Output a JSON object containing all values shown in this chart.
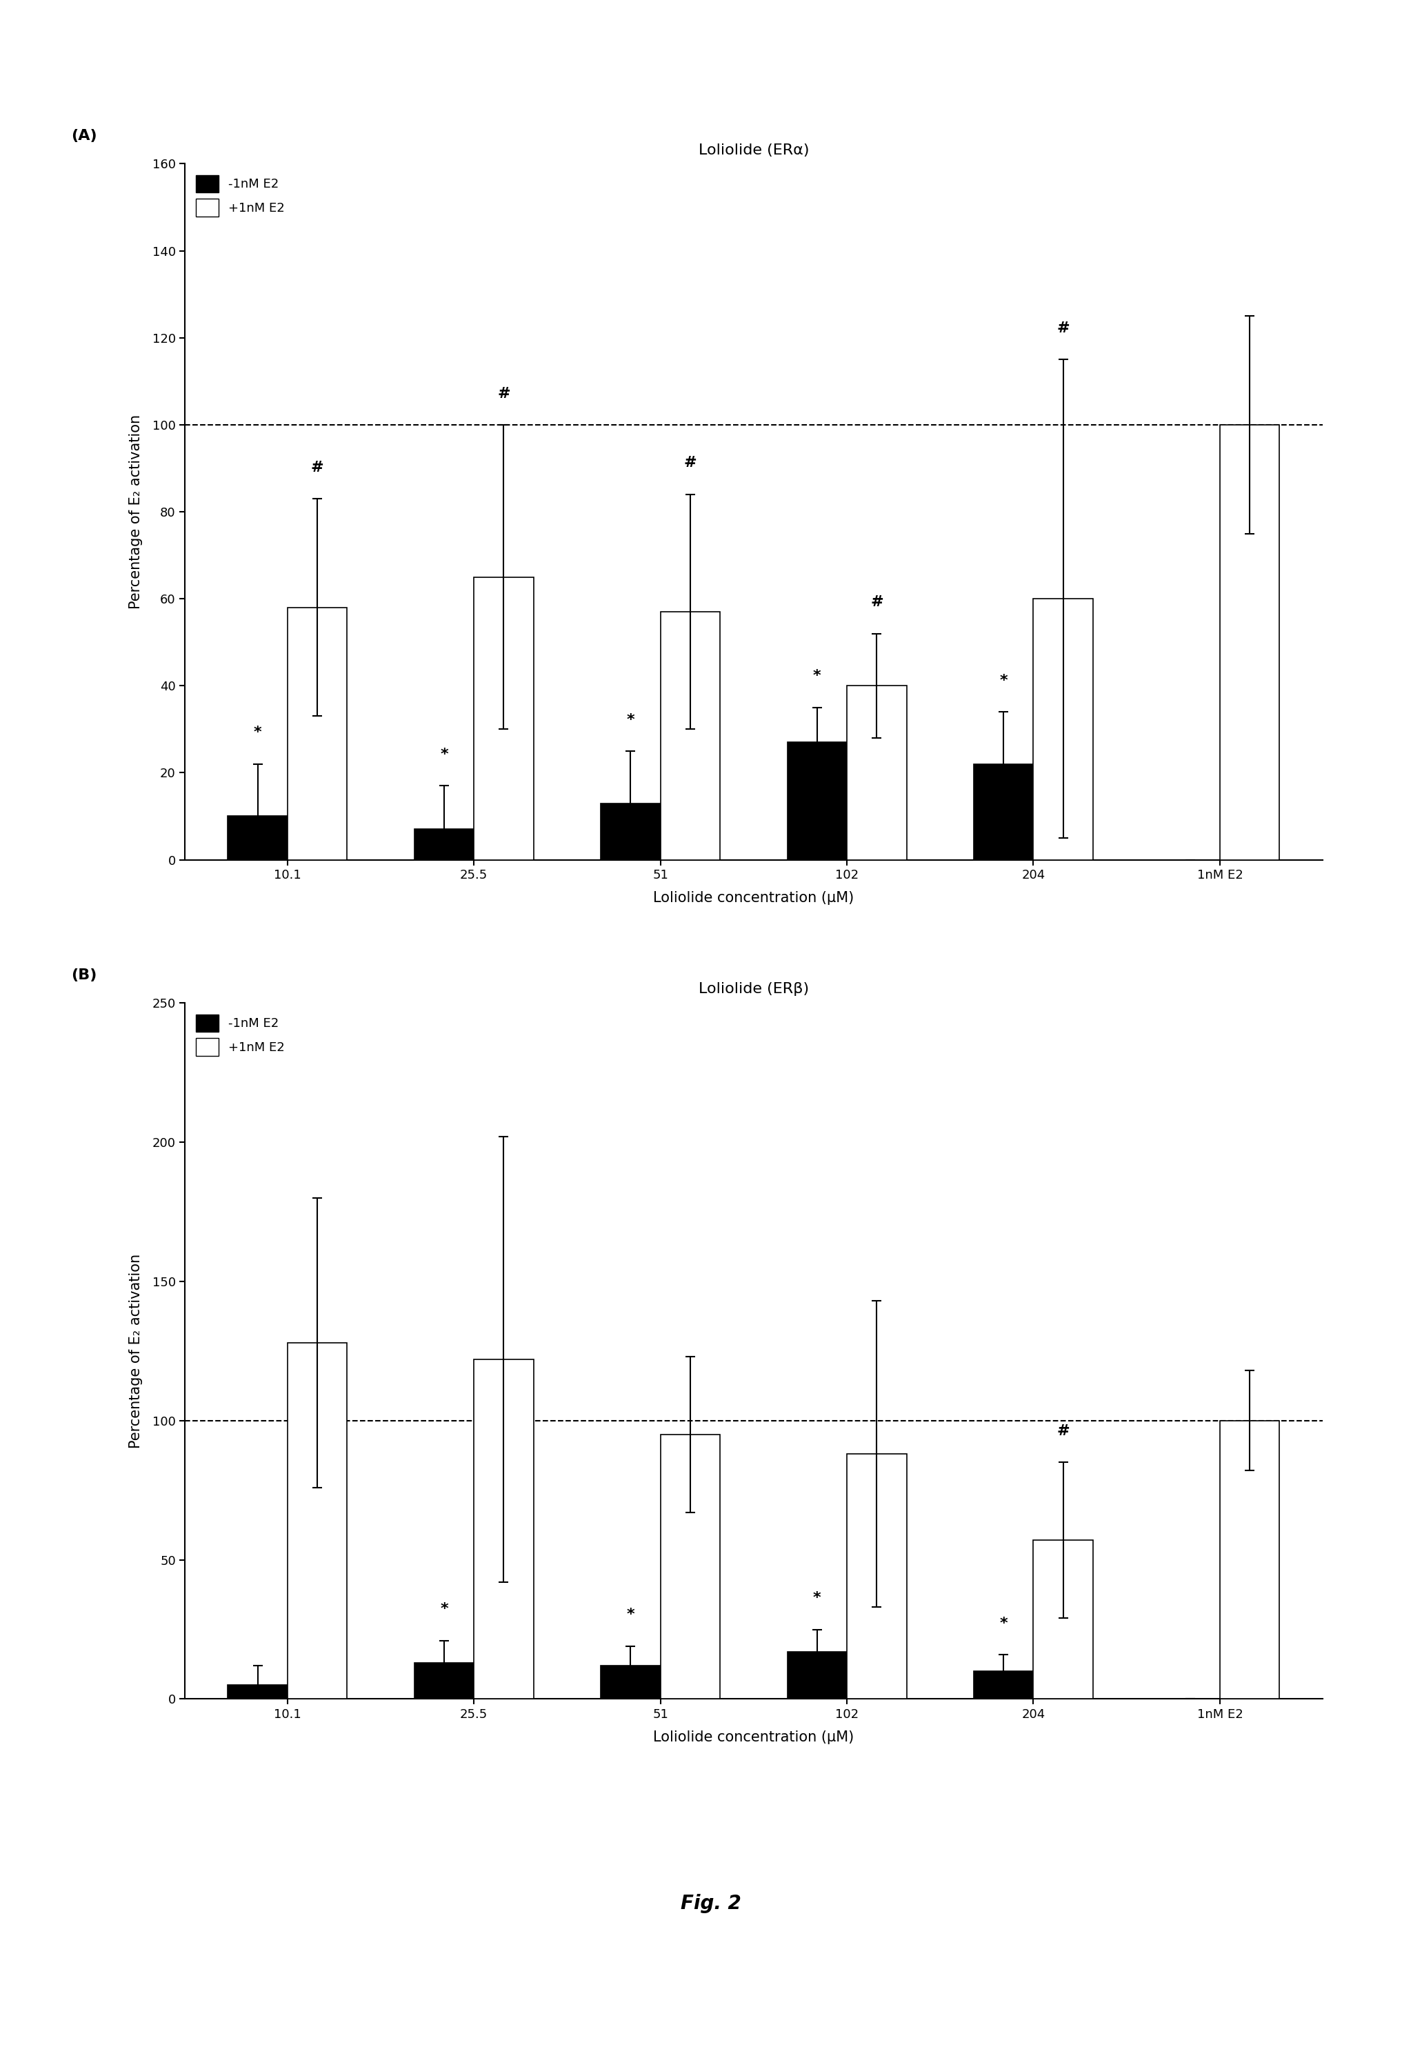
{
  "panel_A": {
    "title": "Loliolide (ERα)",
    "categories": [
      "10.1",
      "25.5",
      "51",
      "102",
      "204",
      "1nM E2"
    ],
    "black_bars": [
      10,
      7,
      13,
      27,
      22,
      0
    ],
    "white_bars": [
      58,
      65,
      57,
      40,
      60,
      100
    ],
    "black_errors": [
      12,
      10,
      12,
      8,
      12,
      0
    ],
    "white_errors": [
      25,
      35,
      27,
      12,
      55,
      25
    ],
    "ylim": [
      0,
      160
    ],
    "yticks": [
      0,
      20,
      40,
      60,
      80,
      100,
      120,
      140,
      160
    ],
    "ylabel": "Percentage of E₂ activation",
    "xlabel": "Loliolide concentration (μM)",
    "dashed_line": 100,
    "star_black": [
      0,
      1,
      2,
      3,
      4
    ],
    "hash_white": [
      0,
      1,
      2,
      3,
      4
    ],
    "panel_label": "(A)"
  },
  "panel_B": {
    "title": "Loliolide (ERβ)",
    "categories": [
      "10.1",
      "25.5",
      "51",
      "102",
      "204",
      "1nM E2"
    ],
    "black_bars": [
      5,
      13,
      12,
      17,
      10,
      0
    ],
    "white_bars": [
      128,
      122,
      95,
      88,
      57,
      100
    ],
    "black_errors": [
      7,
      8,
      7,
      8,
      6,
      0
    ],
    "white_errors": [
      52,
      80,
      28,
      55,
      28,
      18
    ],
    "ylim": [
      0,
      250
    ],
    "yticks": [
      0,
      50,
      100,
      150,
      200,
      250
    ],
    "ylabel": "Percentage of E₂ activation",
    "xlabel": "Loliolide concentration (μM)",
    "dashed_line": 100,
    "star_black": [
      1,
      2,
      3,
      4
    ],
    "hash_white": [
      4
    ],
    "panel_label": "(B)"
  },
  "fig_label": "Fig. 2",
  "bar_width": 0.32,
  "background_color": "#ffffff",
  "bar_color_black": "#000000",
  "bar_color_white": "#ffffff",
  "bar_edge_color": "#000000"
}
